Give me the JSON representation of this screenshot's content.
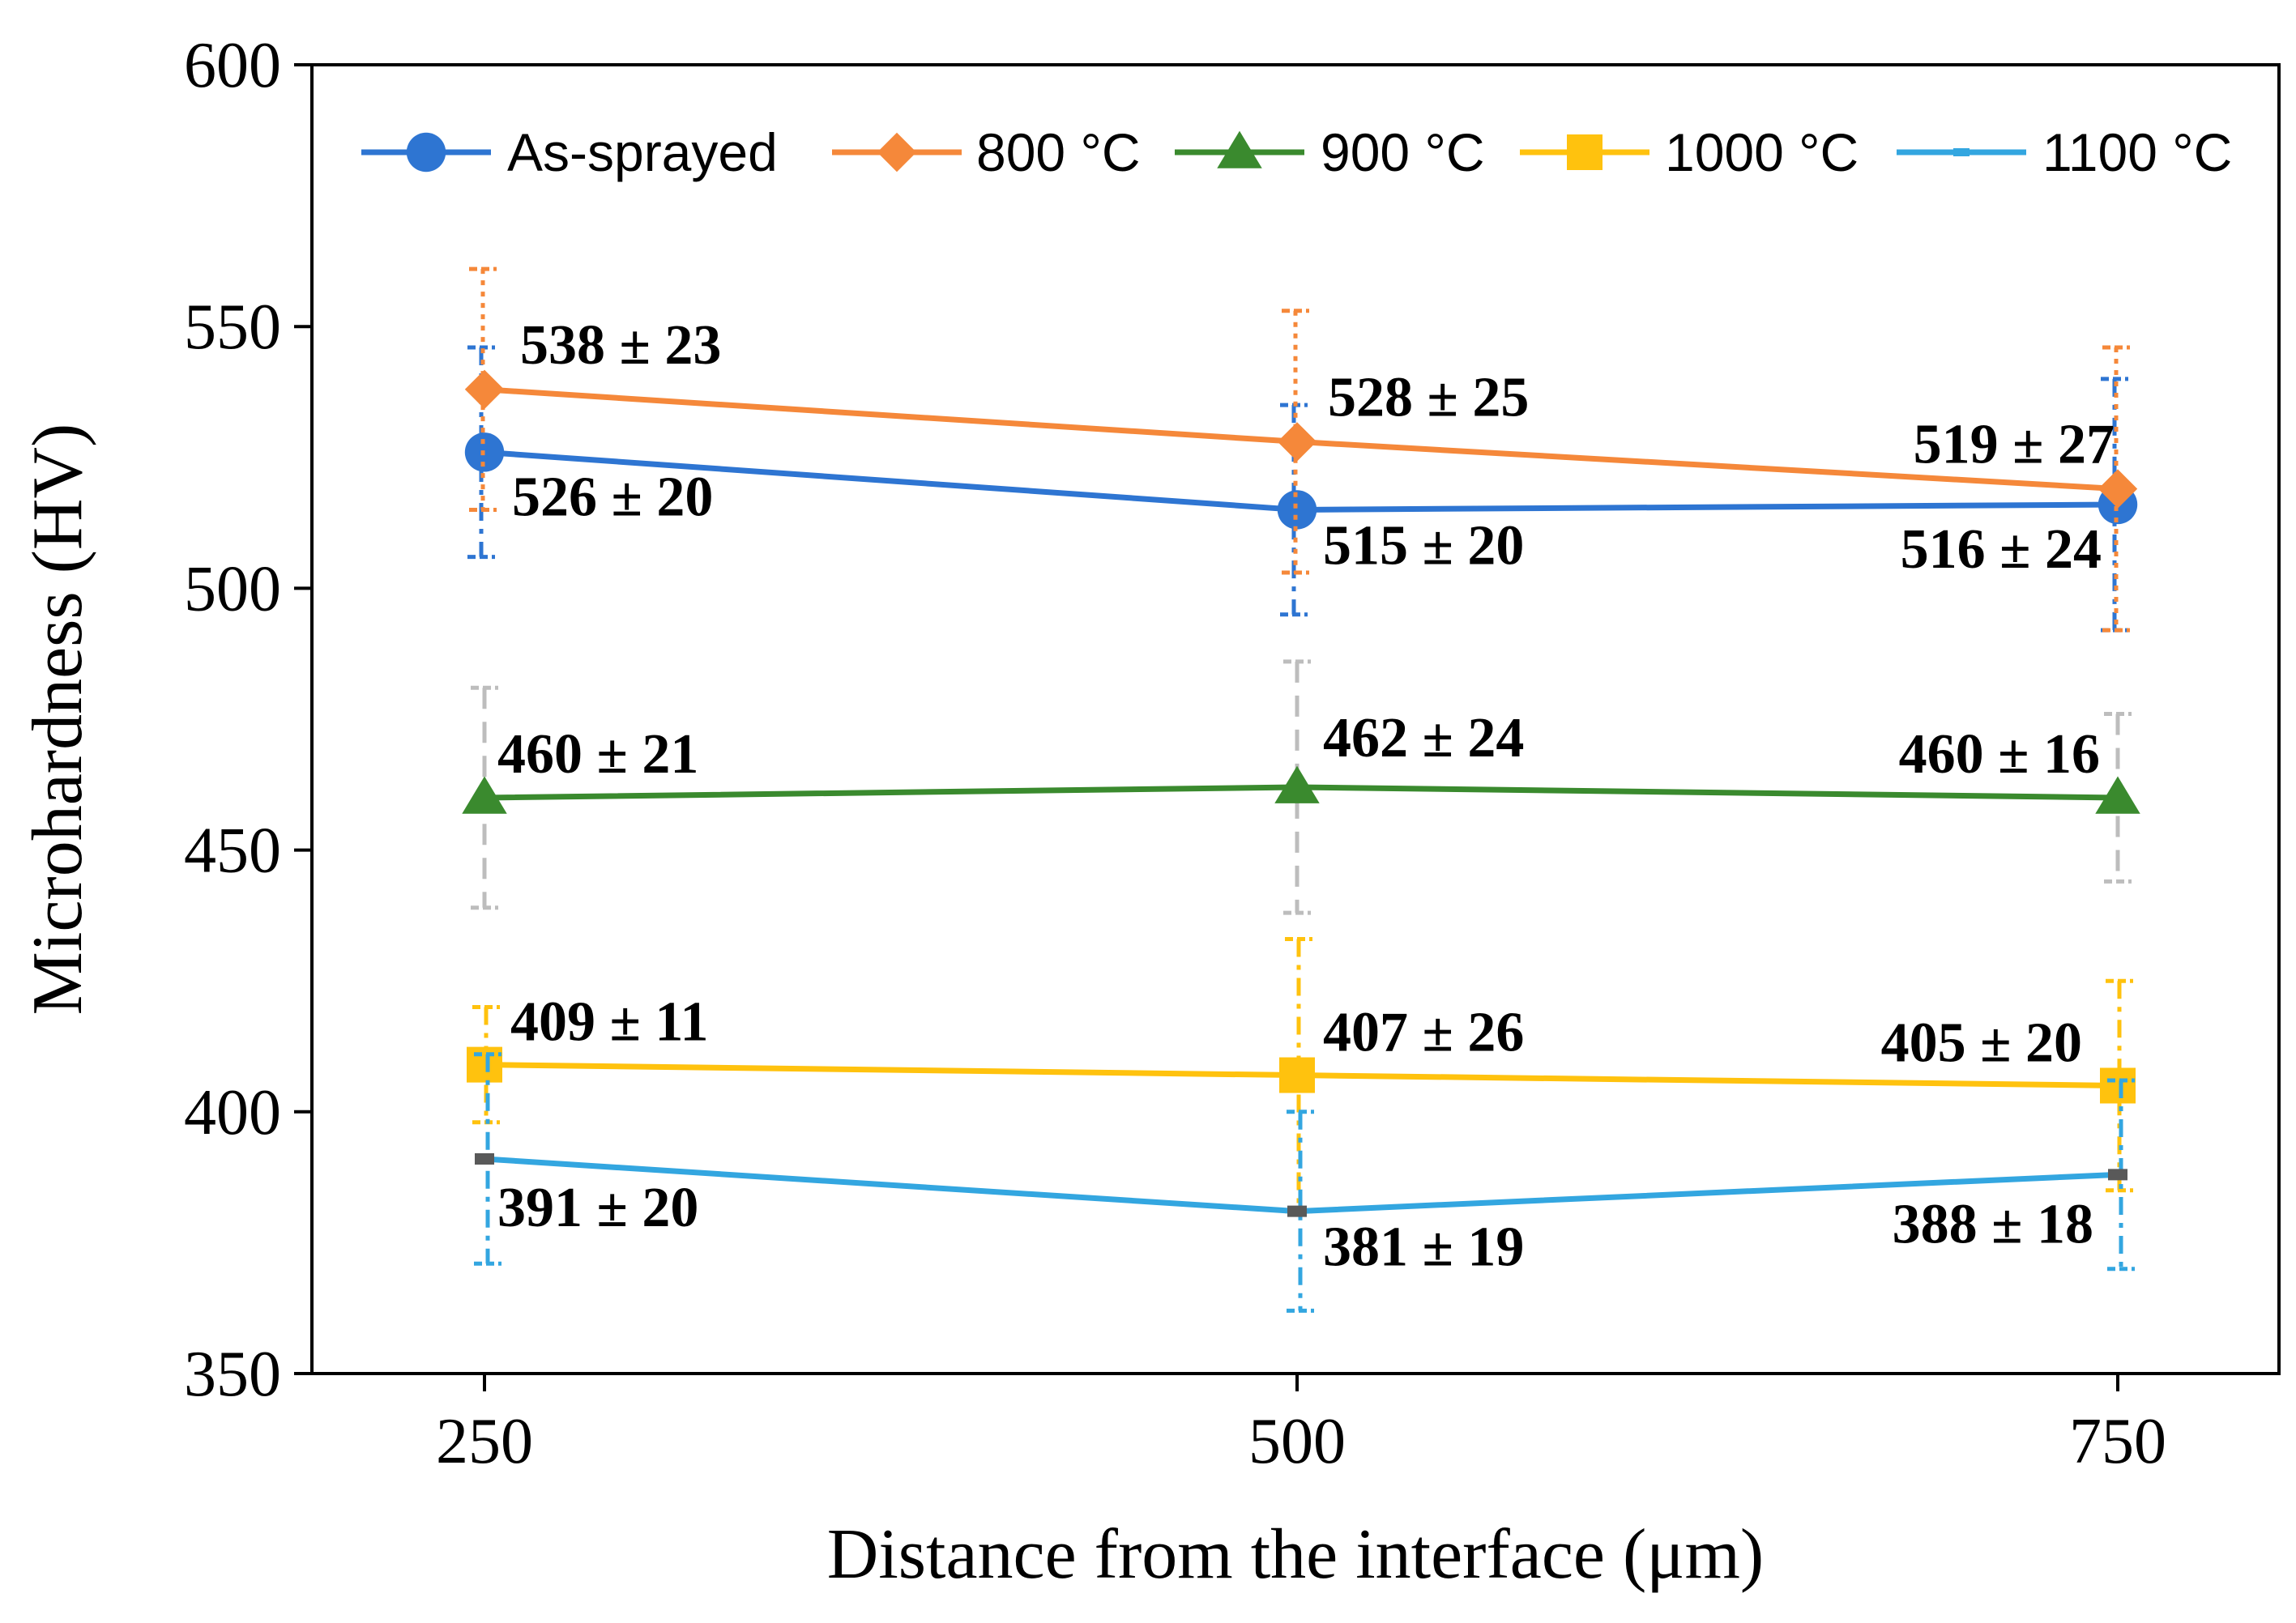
{
  "chart_data": {
    "type": "line",
    "title": "",
    "xlabel": "Distance from the interface (μm)",
    "ylabel": "Microhardness (HV)",
    "x": [
      250,
      500,
      750
    ],
    "xticks": [
      "250",
      "500",
      "750"
    ],
    "ylim": [
      350,
      600
    ],
    "yticks": [
      350,
      400,
      450,
      500,
      550,
      600
    ],
    "grid": false,
    "legend_position": "top",
    "series": [
      {
        "name": "As-sprayed",
        "color": "#2E75D2",
        "marker": "circle",
        "error_style": "dashdot",
        "values": [
          526,
          515,
          516
        ],
        "errors": [
          20,
          20,
          24
        ],
        "labels": [
          "526 ± 20",
          "515 ± 20",
          "516 ± 24"
        ]
      },
      {
        "name": "800 °C",
        "color": "#F5883A",
        "marker": "diamond",
        "error_style": "dotted",
        "values": [
          538,
          528,
          519
        ],
        "errors": [
          23,
          25,
          27
        ],
        "labels": [
          "538 ± 23",
          "528 ± 25",
          "519 ± 27"
        ]
      },
      {
        "name": "900 °C",
        "color": "#3A8A2E",
        "marker": "triangle",
        "error_style": "dashed",
        "error_color": "#BDBDBD",
        "values": [
          460,
          462,
          460
        ],
        "errors": [
          21,
          24,
          16
        ],
        "labels": [
          "460 ± 21",
          "462 ± 24",
          "460 ± 16"
        ]
      },
      {
        "name": "1000 °C",
        "color": "#FFC20E",
        "marker": "square",
        "error_style": "dashdot",
        "values": [
          409,
          407,
          405
        ],
        "errors": [
          11,
          26,
          20
        ],
        "labels": [
          "409 ± 11",
          "407 ± 26",
          "405 ± 20"
        ]
      },
      {
        "name": "1100 °C",
        "color": "#33A6E0",
        "marker": "dash",
        "error_style": "dashdot",
        "values": [
          391,
          381,
          388
        ],
        "errors": [
          20,
          19,
          18
        ],
        "labels": [
          "391 ± 20",
          "381 ± 19",
          "388 ± 18"
        ]
      }
    ]
  }
}
